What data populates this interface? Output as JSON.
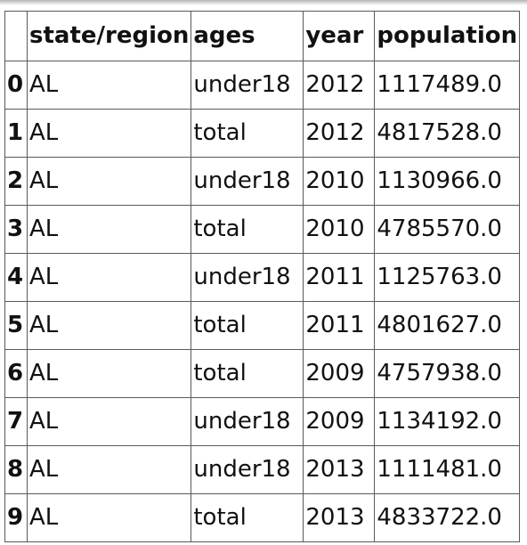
{
  "table": {
    "columns": [
      "",
      "state/region",
      "ages",
      "year",
      "population"
    ],
    "rows": [
      {
        "index": "0",
        "state": "AL",
        "ages": "under18",
        "year": "2012",
        "population": "1117489.0"
      },
      {
        "index": "1",
        "state": "AL",
        "ages": "total",
        "year": "2012",
        "population": "4817528.0"
      },
      {
        "index": "2",
        "state": "AL",
        "ages": "under18",
        "year": "2010",
        "population": "1130966.0"
      },
      {
        "index": "3",
        "state": "AL",
        "ages": "total",
        "year": "2010",
        "population": "4785570.0"
      },
      {
        "index": "4",
        "state": "AL",
        "ages": "under18",
        "year": "2011",
        "population": "1125763.0"
      },
      {
        "index": "5",
        "state": "AL",
        "ages": "total",
        "year": "2011",
        "population": "4801627.0"
      },
      {
        "index": "6",
        "state": "AL",
        "ages": "total",
        "year": "2009",
        "population": "4757938.0"
      },
      {
        "index": "7",
        "state": "AL",
        "ages": "under18",
        "year": "2009",
        "population": "1134192.0"
      },
      {
        "index": "8",
        "state": "AL",
        "ages": "under18",
        "year": "2013",
        "population": "1111481.0"
      },
      {
        "index": "9",
        "state": "AL",
        "ages": "total",
        "year": "2013",
        "population": "4833722.0"
      }
    ]
  }
}
